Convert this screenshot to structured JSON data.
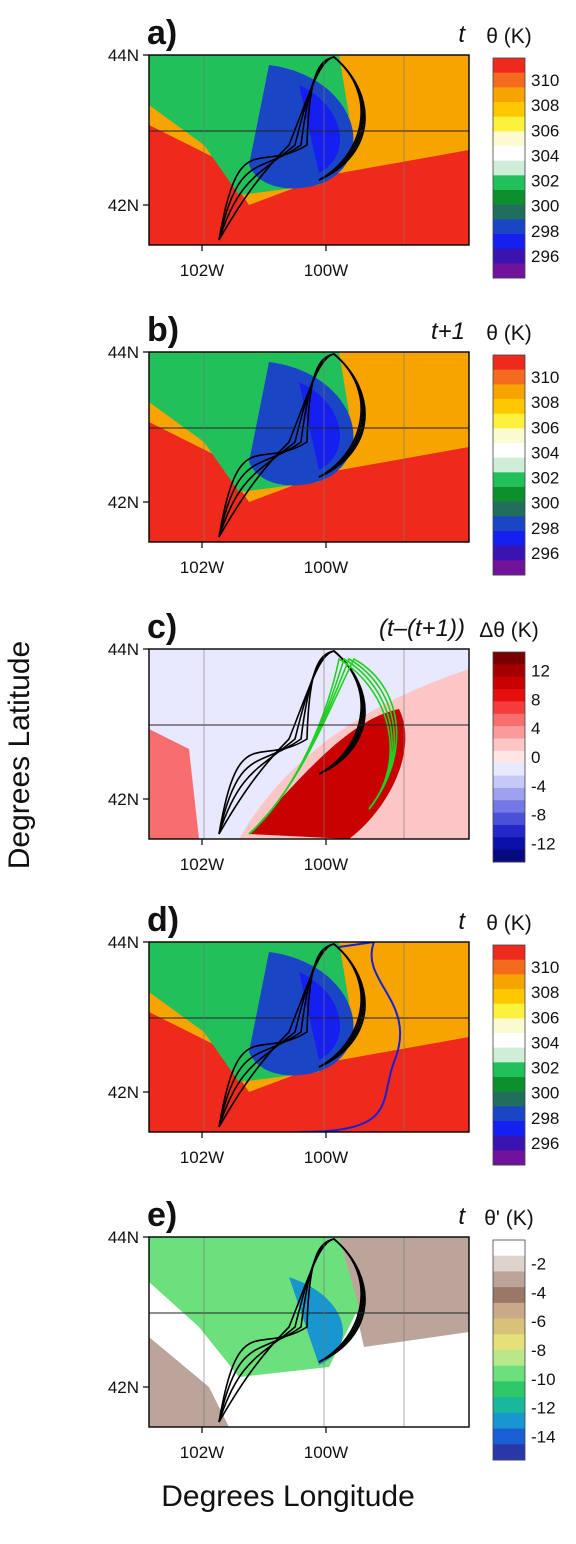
{
  "figure": {
    "y_label": "Degrees Latitude",
    "x_label": "Degrees Longitude"
  },
  "chart_data": [
    {
      "type": "heatmap",
      "panel": "a)",
      "time_label": "t",
      "colorbar_title": "θ (K)",
      "colorbar_ticks": [
        "310",
        "308",
        "306",
        "304",
        "302",
        "300",
        "298",
        "296"
      ],
      "colorbar_colors": [
        "#ef2a1c",
        "#f46a1e",
        "#f7a300",
        "#fdc800",
        "#fcf23d",
        "#fcfad0",
        "#ffffff",
        "#cfeed7",
        "#22c05a",
        "#0e8f2e",
        "#1f6f5c",
        "#1a46c6",
        "#1520f0",
        "#3a14b0",
        "#70129a"
      ],
      "x_ticks": [
        "102W",
        "100W"
      ],
      "y_ticks": [
        "44N",
        "42N"
      ],
      "contours": "black",
      "extra_contour": ""
    },
    {
      "type": "heatmap",
      "panel": "b)",
      "time_label": "t+1",
      "colorbar_title": "θ (K)",
      "colorbar_ticks": [
        "310",
        "308",
        "306",
        "304",
        "302",
        "300",
        "298",
        "296"
      ],
      "colorbar_colors": [
        "#ef2a1c",
        "#f46a1e",
        "#f7a300",
        "#fdc800",
        "#fcf23d",
        "#fcfad0",
        "#ffffff",
        "#cfeed7",
        "#22c05a",
        "#0e8f2e",
        "#1f6f5c",
        "#1a46c6",
        "#1520f0",
        "#3a14b0",
        "#70129a"
      ],
      "x_ticks": [
        "102W",
        "100W"
      ],
      "y_ticks": [
        "44N",
        "42N"
      ],
      "contours": "black",
      "extra_contour": ""
    },
    {
      "type": "heatmap",
      "panel": "c)",
      "time_label": "(t–(t+1))",
      "colorbar_title": "Δθ (K)",
      "colorbar_ticks": [
        "12",
        "8",
        "4",
        "0",
        "-4",
        "-8",
        "-12"
      ],
      "colorbar_colors": [
        "#7a0000",
        "#a50000",
        "#c80000",
        "#e60f0f",
        "#f53c3c",
        "#f86e6e",
        "#fa9a9a",
        "#fcc6c6",
        "#ffe5e5",
        "#e8e8ff",
        "#c6c8f8",
        "#9ea2ee",
        "#7478e4",
        "#4a50d8",
        "#2428c8",
        "#0a10a8",
        "#060a80"
      ],
      "x_ticks": [
        "102W",
        "100W"
      ],
      "y_ticks": [
        "44N",
        "42N"
      ],
      "contours": "black and green",
      "extra_contour": ""
    },
    {
      "type": "heatmap",
      "panel": "d)",
      "time_label": "t",
      "colorbar_title": "θ (K)",
      "colorbar_ticks": [
        "310",
        "308",
        "306",
        "304",
        "302",
        "300",
        "298",
        "296"
      ],
      "colorbar_colors": [
        "#ef2a1c",
        "#f46a1e",
        "#f7a300",
        "#fdc800",
        "#fcf23d",
        "#fcfad0",
        "#ffffff",
        "#cfeed7",
        "#22c05a",
        "#0e8f2e",
        "#1f6f5c",
        "#1a46c6",
        "#1520f0",
        "#3a14b0",
        "#70129a"
      ],
      "x_ticks": [
        "102W",
        "100W"
      ],
      "y_ticks": [
        "44N",
        "42N"
      ],
      "contours": "black",
      "extra_contour": "blue"
    },
    {
      "type": "heatmap",
      "panel": "e)",
      "time_label": "t",
      "colorbar_title": "θ' (K)",
      "colorbar_ticks": [
        "-2",
        "-4",
        "-6",
        "-8",
        "-10",
        "-12",
        "-14"
      ],
      "colorbar_colors": [
        "#ffffff",
        "#ddd2cc",
        "#bba59a",
        "#9a7868",
        "#c9a98a",
        "#d8c27a",
        "#e4e07a",
        "#b8e88a",
        "#6ce07c",
        "#2cc86a",
        "#18b89a",
        "#1896d0",
        "#1a5ed6",
        "#2838a8"
      ],
      "x_ticks": [
        "102W",
        "100W"
      ],
      "y_ticks": [
        "44N",
        "42N"
      ],
      "contours": "black",
      "extra_contour": ""
    }
  ]
}
